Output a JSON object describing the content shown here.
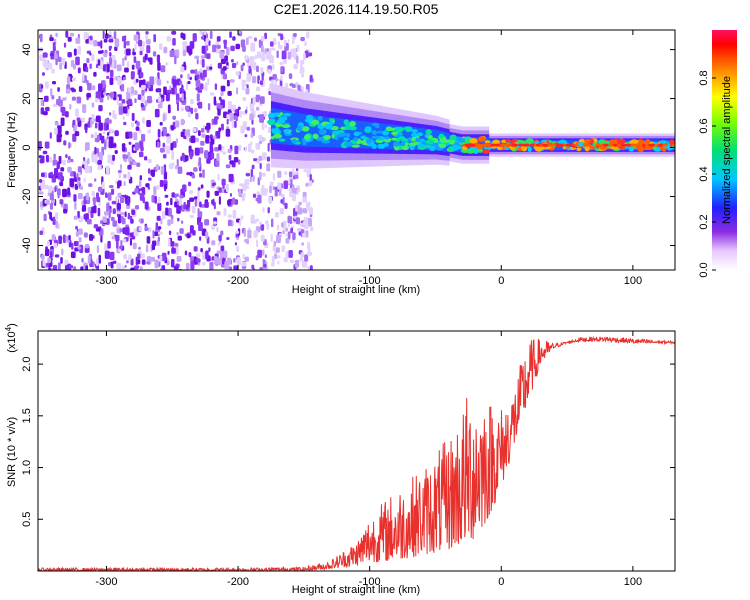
{
  "title": "C2E1.2026.114.19.50.R05",
  "colors": {
    "background": "#ffffff",
    "snr_line": "#e8302c",
    "frame": "#000000"
  },
  "chart_data": [
    {
      "type": "heatmap",
      "name": "spectrogram",
      "xlabel": "Height of straight line (km)",
      "ylabel": "Frequency (Hz)",
      "xlim": [
        -352,
        132
      ],
      "ylim": [
        -50,
        48
      ],
      "xticks": [
        -300,
        -200,
        -100,
        0,
        100
      ],
      "yticks": [
        -40,
        -20,
        0,
        20,
        40
      ],
      "colorbar": {
        "label": "Normalized spectral amplitude",
        "range": [
          0.0,
          1.0
        ],
        "ticks": [
          "0.0",
          "0.2",
          "0.4",
          "0.6",
          "0.8"
        ],
        "tick_values": [
          0.0,
          0.2,
          0.4,
          0.6,
          0.8
        ]
      },
      "noise_region_km": [
        -352,
        -160
      ],
      "signal_track": {
        "x": [
          -175,
          -150,
          -125,
          -100,
          -75,
          -50,
          -30,
          -10,
          10,
          40,
          70,
          100,
          132
        ],
        "center_hz": [
          9,
          7,
          6,
          5,
          4,
          3,
          1,
          1,
          1,
          1,
          1,
          1,
          1
        ]
      }
    },
    {
      "type": "line",
      "name": "snr",
      "xlabel": "Height of straight line (km)",
      "ylabel": "SNR (10 * v/v)",
      "exponent_label": "(x10",
      "exponent_power": "4",
      "xlim": [
        -352,
        132
      ],
      "ylim": [
        0.0,
        2.32
      ],
      "xticks": [
        -300,
        -200,
        -100,
        0,
        100
      ],
      "yticks": [
        0.5,
        1.0,
        1.5,
        2.0
      ],
      "ytick_labels": [
        "0.5",
        "1.0",
        "1.5",
        "2.0"
      ],
      "envelope": {
        "x": [
          -352,
          -200,
          -150,
          -130,
          -110,
          -100,
          -80,
          -60,
          -40,
          -20,
          -10,
          0,
          10,
          20,
          30,
          40,
          50,
          60,
          80,
          100,
          132
        ],
        "low": [
          0.0,
          0.0,
          0.0,
          0.02,
          0.05,
          0.08,
          0.1,
          0.15,
          0.2,
          0.3,
          0.5,
          0.8,
          1.2,
          1.6,
          2.0,
          2.15,
          2.2,
          2.22,
          2.22,
          2.2,
          2.2
        ],
        "high": [
          0.03,
          0.03,
          0.04,
          0.1,
          0.3,
          0.55,
          0.8,
          1.0,
          1.3,
          1.9,
          1.7,
          1.6,
          1.8,
          2.25,
          2.25,
          2.2,
          2.22,
          2.26,
          2.27,
          2.25,
          2.22
        ]
      }
    }
  ]
}
